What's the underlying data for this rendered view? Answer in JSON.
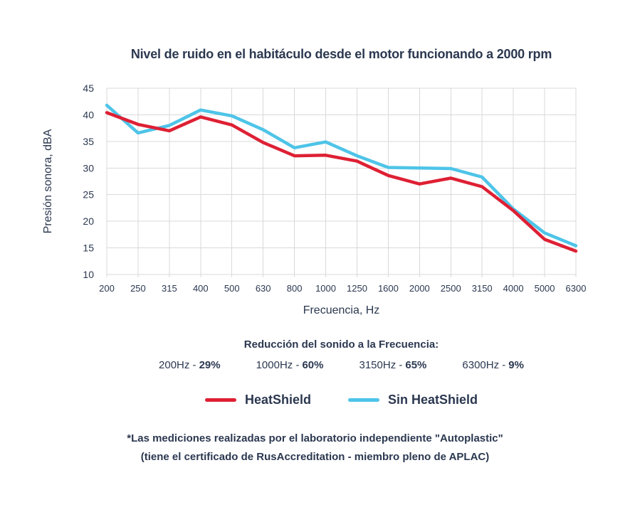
{
  "colors": {
    "text": "#2b3850",
    "grid": "#d9d9d9",
    "heatshield_red": "#de2034",
    "sin_heatshield_blue": "#4ec4e8"
  },
  "chart_data": {
    "type": "line",
    "title": "Nivel de ruido en el habitáculo desde el motor funcionando a 2000 rpm",
    "xlabel": "Frecuencia, Hz",
    "ylabel": "Presión sonora, dBA",
    "categories": [
      "200",
      "250",
      "315",
      "400",
      "500",
      "630",
      "800",
      "1000",
      "1250",
      "1600",
      "2000",
      "2500",
      "3150",
      "4000",
      "5000",
      "6300"
    ],
    "series": [
      {
        "name": "HeatShield",
        "color": "#de2034",
        "values": [
          40.4,
          38.2,
          37.0,
          39.6,
          38.1,
          34.8,
          32.3,
          32.4,
          31.3,
          28.6,
          27.0,
          28.1,
          26.5,
          22.0,
          16.6,
          14.4
        ]
      },
      {
        "name": "Sin HeatShield",
        "color": "#4ec4e8",
        "values": [
          41.8,
          36.6,
          38.0,
          40.9,
          39.8,
          37.2,
          33.8,
          34.9,
          32.3,
          30.1,
          30.0,
          29.9,
          28.3,
          22.3,
          17.8,
          15.4
        ]
      }
    ],
    "ylim": [
      10,
      45
    ],
    "ytick_step": 5,
    "grid": true,
    "legend_position": "bottom"
  },
  "reduction": {
    "title": "Reducción del sonido a la Frecuencia:",
    "items": [
      {
        "freq": "200Hz -",
        "value": "29%"
      },
      {
        "freq": "1000Hz -",
        "value": "60%"
      },
      {
        "freq": "3150Hz -",
        "value": "65%"
      },
      {
        "freq": "6300Hz -",
        "value": "9%"
      }
    ]
  },
  "legend": {
    "items": [
      {
        "label": "HeatShield",
        "color": "#de2034"
      },
      {
        "label": "Sin HeatShield",
        "color": "#4ec4e8"
      }
    ]
  },
  "footnote": {
    "line1": "*Las mediciones realizadas por el laboratorio independiente \"Autoplastic\"",
    "line2": "(tiene el certificado de RusAccreditation - miembro pleno de APLAC)"
  }
}
